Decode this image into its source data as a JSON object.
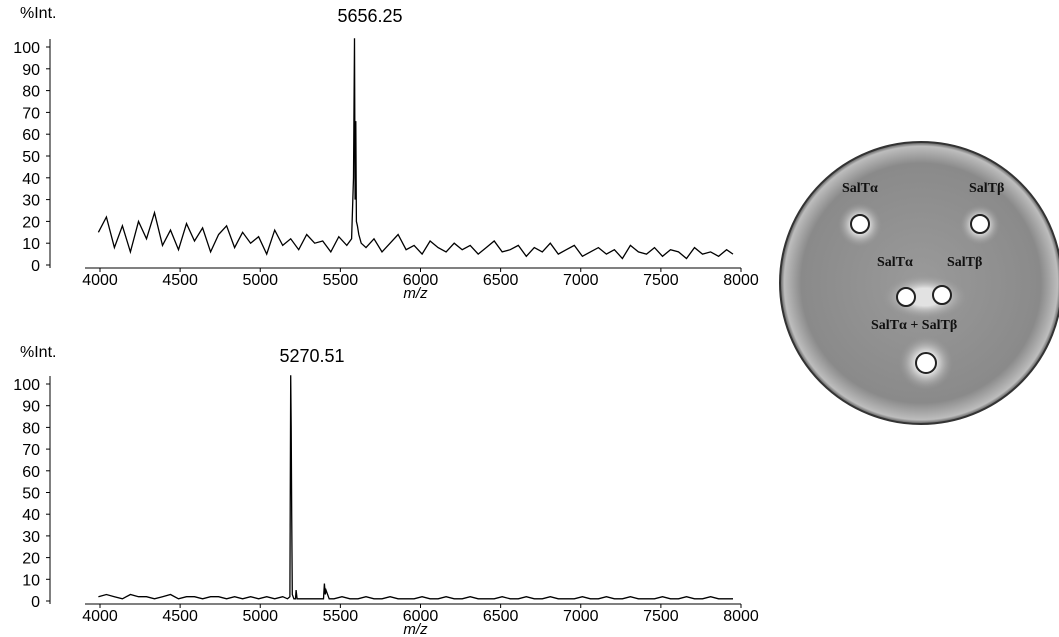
{
  "chart_data": [
    {
      "type": "line",
      "ylabel": "%Int.",
      "xlabel": "m/z",
      "annotation": "5656.25",
      "xlim": [
        4000,
        8000
      ],
      "ylim": [
        0,
        100
      ],
      "xticks": [
        4000,
        4500,
        5000,
        5500,
        6000,
        6500,
        7000,
        7500,
        8000
      ],
      "yticks": [
        0,
        10,
        20,
        30,
        40,
        50,
        60,
        70,
        80,
        90,
        100
      ],
      "x": [
        3990,
        4040,
        4090,
        4140,
        4190,
        4240,
        4290,
        4340,
        4390,
        4440,
        4490,
        4540,
        4590,
        4640,
        4690,
        4740,
        4790,
        4840,
        4890,
        4940,
        4990,
        5040,
        5090,
        5140,
        5190,
        5240,
        5290,
        5340,
        5390,
        5440,
        5490,
        5540,
        5570,
        5582,
        5588,
        5592,
        5596,
        5600,
        5606,
        5615,
        5630,
        5660,
        5710,
        5760,
        5810,
        5860,
        5910,
        5960,
        6010,
        6060,
        6110,
        6160,
        6210,
        6260,
        6310,
        6360,
        6410,
        6460,
        6510,
        6560,
        6610,
        6660,
        6710,
        6760,
        6810,
        6860,
        6910,
        6960,
        7010,
        7060,
        7110,
        7160,
        7210,
        7260,
        7310,
        7360,
        7410,
        7460,
        7510,
        7560,
        7610,
        7660,
        7710,
        7760,
        7810,
        7860,
        7910,
        7950
      ],
      "series": [
        {
          "color": "#000000",
          "values": [
            15,
            22,
            8,
            18,
            6,
            20,
            12,
            24,
            9,
            16,
            7,
            19,
            11,
            17,
            6,
            14,
            18,
            8,
            15,
            10,
            13,
            5,
            16,
            9,
            12,
            7,
            14,
            10,
            11,
            6,
            13,
            9,
            12,
            40,
            104,
            30,
            66,
            20,
            18,
            14,
            10,
            8,
            12,
            6,
            10,
            14,
            7,
            9,
            5,
            11,
            8,
            6,
            10,
            7,
            9,
            5,
            8,
            11,
            6,
            7,
            9,
            4,
            8,
            6,
            10,
            5,
            7,
            9,
            4,
            6,
            8,
            5,
            7,
            3,
            9,
            6,
            5,
            8,
            4,
            7,
            6,
            3,
            8,
            5,
            6,
            4,
            7,
            5
          ]
        }
      ]
    },
    {
      "type": "line",
      "ylabel": "%Int.",
      "xlabel": "m/z",
      "annotation": "5270.51",
      "xlim": [
        4000,
        8000
      ],
      "ylim": [
        0,
        100
      ],
      "xticks": [
        4000,
        4500,
        5000,
        5500,
        6000,
        6500,
        7000,
        7500,
        8000
      ],
      "yticks": [
        0,
        10,
        20,
        30,
        40,
        50,
        60,
        70,
        80,
        90,
        100
      ],
      "x": [
        3990,
        4040,
        4090,
        4140,
        4190,
        4240,
        4290,
        4340,
        4390,
        4440,
        4490,
        4540,
        4590,
        4640,
        4690,
        4740,
        4790,
        4840,
        4890,
        4940,
        4990,
        5040,
        5090,
        5140,
        5170,
        5185,
        5190,
        5193,
        5196,
        5200,
        5210,
        5220,
        5224,
        5230,
        5260,
        5310,
        5360,
        5395,
        5400,
        5405,
        5410,
        5430,
        5460,
        5510,
        5560,
        5610,
        5660,
        5710,
        5760,
        5810,
        5860,
        5910,
        5960,
        6010,
        6060,
        6110,
        6160,
        6210,
        6260,
        6310,
        6360,
        6410,
        6460,
        6510,
        6560,
        6610,
        6660,
        6710,
        6760,
        6810,
        6860,
        6910,
        6960,
        7010,
        7060,
        7110,
        7160,
        7210,
        7260,
        7310,
        7360,
        7410,
        7460,
        7510,
        7560,
        7610,
        7660,
        7710,
        7760,
        7810,
        7860,
        7910,
        7950
      ],
      "series": [
        {
          "color": "#000000",
          "values": [
            2,
            3,
            2,
            1,
            3,
            2,
            2,
            1,
            2,
            3,
            1,
            2,
            2,
            1,
            2,
            2,
            1,
            2,
            1,
            2,
            1,
            2,
            1,
            2,
            1,
            2,
            104,
            80,
            40,
            3,
            1,
            1,
            5,
            1,
            1,
            1,
            1,
            1,
            8,
            3,
            5,
            1,
            1,
            2,
            1,
            1,
            2,
            1,
            1,
            2,
            1,
            1,
            1,
            2,
            1,
            1,
            2,
            1,
            1,
            2,
            1,
            1,
            1,
            2,
            1,
            1,
            2,
            1,
            1,
            2,
            1,
            1,
            1,
            2,
            1,
            1,
            2,
            1,
            1,
            2,
            1,
            1,
            1,
            2,
            1,
            1,
            2,
            1,
            1,
            2,
            1,
            1,
            1
          ]
        }
      ]
    }
  ],
  "image": {
    "labels": [
      "SalTα",
      "SalTβ",
      "SalTα",
      "SalTβ",
      "SalTα + SalTβ"
    ]
  }
}
